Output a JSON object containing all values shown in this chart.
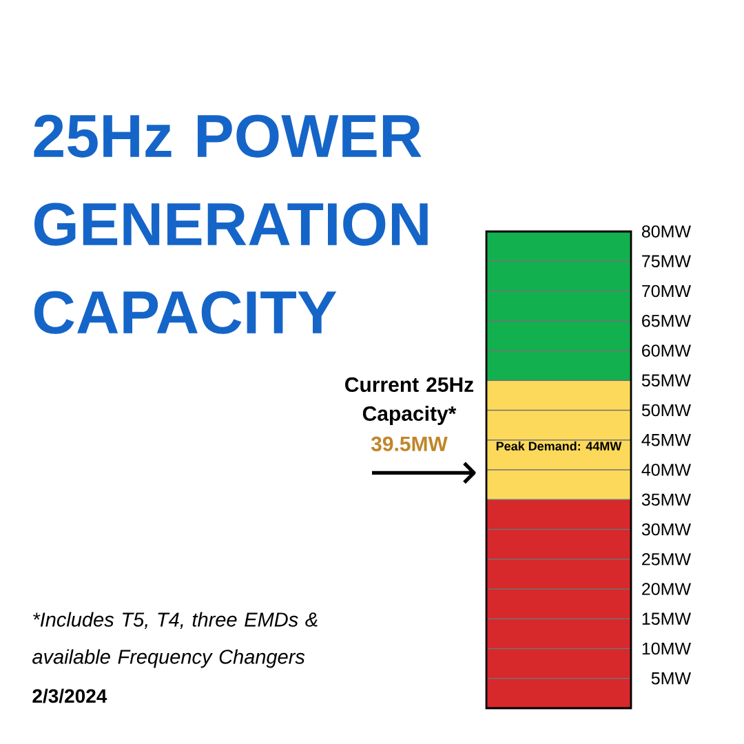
{
  "chart_data": {
    "type": "bar",
    "title": "25Hz POWER GENERATION CAPACITY",
    "categories": [
      null
    ],
    "stacked": true,
    "series": [
      {
        "color": "#d7282b",
        "values": [
          35
        ]
      },
      {
        "color": "#fcd95b",
        "values": [
          20
        ]
      },
      {
        "color": "#13b04f",
        "values": [
          25
        ]
      }
    ],
    "ylim": [
      0,
      80
    ],
    "yticks": [
      {
        "value": 5,
        "label": "5MW"
      },
      {
        "value": 10,
        "label": "10MW"
      },
      {
        "value": 15,
        "label": "15MW"
      },
      {
        "value": 20,
        "label": "20MW"
      },
      {
        "value": 25,
        "label": "25MW"
      },
      {
        "value": 30,
        "label": "30MW"
      },
      {
        "value": 35,
        "label": "35MW"
      },
      {
        "value": 40,
        "label": "40MW"
      },
      {
        "value": 45,
        "label": "45MW"
      },
      {
        "value": 50,
        "label": "50MW"
      },
      {
        "value": 55,
        "label": "55MW"
      },
      {
        "value": 60,
        "label": "60MW"
      },
      {
        "value": 65,
        "label": "65MW"
      },
      {
        "value": 70,
        "label": "70MW"
      },
      {
        "value": 75,
        "label": "75MW"
      },
      {
        "value": 80,
        "label": "80MW"
      }
    ],
    "grid": "y",
    "tick_labels": "y",
    "ref_lines": [
      {
        "axis": "y",
        "value": 39.5,
        "label": "39.5MW"
      }
    ],
    "annotations": [
      "Current 25Hz Capacity*",
      "Peak Demand: 44MW",
      "*Includes T5, T4, three EMDs & available Frequency Changers",
      "2/3/2024"
    ]
  }
}
